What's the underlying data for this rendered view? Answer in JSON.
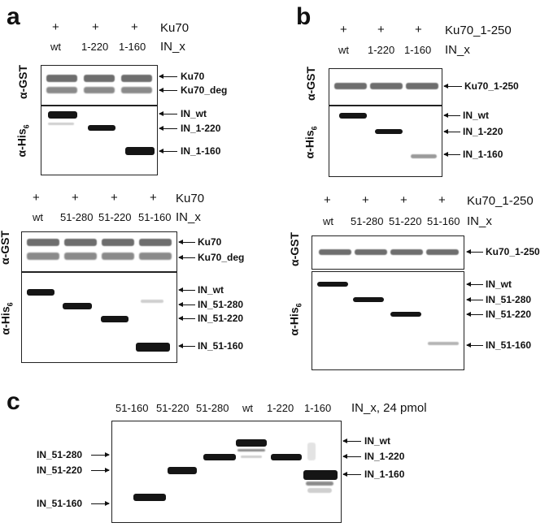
{
  "panels": {
    "a": "a",
    "b": "b",
    "c": "c"
  },
  "plus": "+",
  "a_top": {
    "lanes": [
      "wt",
      "1-220",
      "1-160"
    ],
    "header_right": "Ku70",
    "row_right": "IN_x",
    "gst_label": "α-GST",
    "his_label": "α-His",
    "his_sub": "6",
    "gst_markers": [
      "Ku70",
      "Ku70_deg"
    ],
    "his_markers": [
      "IN_wt",
      "IN_1-220",
      "IN_1-160"
    ]
  },
  "a_bottom": {
    "lanes": [
      "wt",
      "51-280",
      "51-220",
      "51-160"
    ],
    "header_right": "Ku70",
    "row_right": "IN_x",
    "gst_label": "α-GST",
    "his_label": "α-His",
    "his_sub": "6",
    "gst_markers": [
      "Ku70",
      "Ku70_deg"
    ],
    "his_markers": [
      "IN_wt",
      "IN_51-280",
      "IN_51-220",
      "IN_51-160"
    ]
  },
  "b_top": {
    "lanes": [
      "wt",
      "1-220",
      "1-160"
    ],
    "header_right": "Ku70_1-250",
    "row_right": "IN_x",
    "gst_label": "α-GST",
    "his_label": "α-His",
    "his_sub": "6",
    "gst_markers": [
      "Ku70_1-250"
    ],
    "his_markers": [
      "IN_wt",
      "IN_1-220",
      "IN_1-160"
    ]
  },
  "b_bottom": {
    "lanes": [
      "wt",
      "51-280",
      "51-220",
      "51-160"
    ],
    "header_right": "Ku70_1-250",
    "row_right": "IN_x",
    "gst_label": "α-GST",
    "his_label": "α-His",
    "his_sub": "6",
    "gst_markers": [
      "Ku70_1-250"
    ],
    "his_markers": [
      "IN_wt",
      "IN_51-280",
      "IN_51-220",
      "IN_51-160"
    ]
  },
  "c": {
    "lanes": [
      "51-160",
      "51-220",
      "51-280",
      "wt",
      "1-220",
      "1-160"
    ],
    "header_right": "IN_x, 24 pmol",
    "left_markers": [
      "IN_51-280",
      "IN_51-220",
      "IN_51-160"
    ],
    "right_markers": [
      "IN_wt",
      "IN_1-220",
      "IN_1-160"
    ]
  }
}
